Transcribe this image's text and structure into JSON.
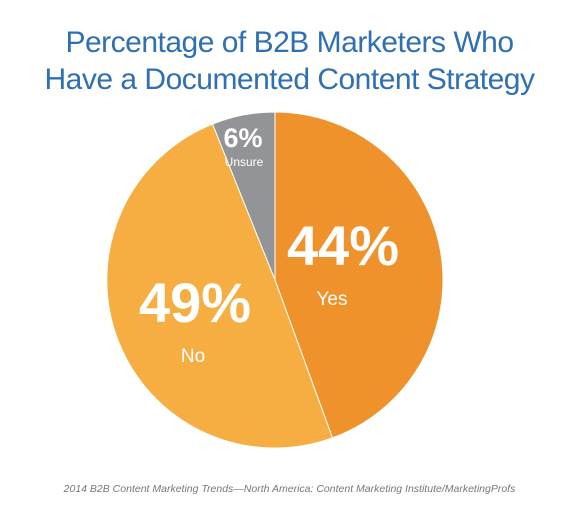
{
  "title_lines": [
    "Percentage of B2B Marketers Who",
    "Have a Documented Content Strategy"
  ],
  "source": "2014 B2B Content Marketing Trends—North America: Content Marketing Institute/MarketingProfs",
  "colors": {
    "title": "#2f6fb3",
    "yes": "#f0922b",
    "no": "#f6ae43",
    "unsure": "#929497",
    "label": "#ffffff"
  },
  "chart_data": {
    "type": "pie",
    "title": "Percentage of B2B Marketers Who Have a Documented Content Strategy",
    "start_angle_deg": 0,
    "direction": "clockwise",
    "slices": [
      {
        "label": "Yes",
        "value": 44,
        "value_label": "44%",
        "color": "#f0922b"
      },
      {
        "label": "No",
        "value": 49,
        "value_label": "49%",
        "color": "#f6ae43"
      },
      {
        "label": "Unsure",
        "value": 6,
        "value_label": "6%",
        "color": "#929497"
      }
    ]
  }
}
